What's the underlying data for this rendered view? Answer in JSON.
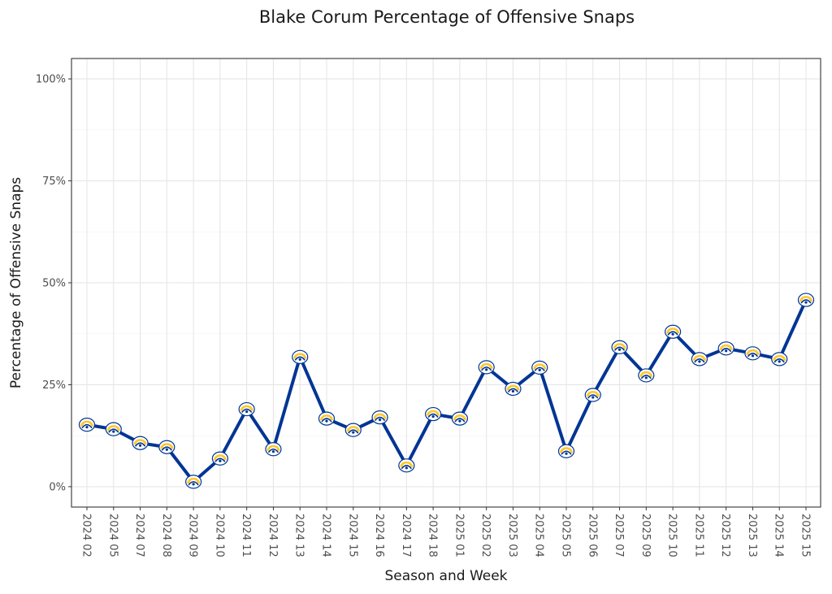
{
  "colors": {
    "line": "#003594",
    "logo_gold": "#FFC72C",
    "logo_blue": "#003594",
    "logo_white": "#ffffff"
  },
  "chart_data": {
    "type": "line",
    "title": "Blake Corum Percentage of Offensive Snaps",
    "xlabel": "Season and Week",
    "ylabel": "Percentage of Offensive Snaps",
    "ylim": [
      -0.05,
      1.05
    ],
    "yticks": [
      {
        "value": 0,
        "label": "0%"
      },
      {
        "value": 0.25,
        "label": "25%"
      },
      {
        "value": 0.5,
        "label": "50%"
      },
      {
        "value": 0.75,
        "label": "75%"
      },
      {
        "value": 1.0,
        "label": "100%"
      }
    ],
    "grid": true,
    "marker": "team-logo-icon",
    "categories": [
      "2024 02",
      "2024 05",
      "2024 07",
      "2024 08",
      "2024 09",
      "2024 10",
      "2024 11",
      "2024 12",
      "2024 13",
      "2024 14",
      "2024 15",
      "2024 16",
      "2024 17",
      "2024 18",
      "2025 01",
      "2025 02",
      "2025 03",
      "2025 04",
      "2025 05",
      "2025 06",
      "2025 07",
      "2025 09",
      "2025 10",
      "2025 11",
      "2025 12",
      "2025 13",
      "2025 14",
      "2025 15"
    ],
    "values": [
      0.152,
      0.141,
      0.107,
      0.097,
      0.012,
      0.069,
      0.19,
      0.092,
      0.318,
      0.167,
      0.139,
      0.17,
      0.052,
      0.178,
      0.167,
      0.293,
      0.24,
      0.292,
      0.087,
      0.225,
      0.342,
      0.273,
      0.38,
      0.313,
      0.339,
      0.327,
      0.313,
      0.458
    ]
  }
}
